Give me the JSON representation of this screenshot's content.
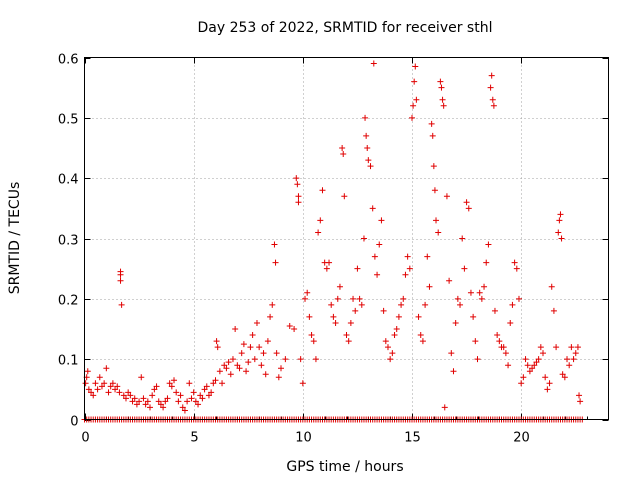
{
  "chart_data": {
    "type": "scatter",
    "title": "Day 253 of 2022, SRMTID for receiver sthl",
    "xlabel": "GPS time / hours",
    "ylabel": "SRMTID / TECUs",
    "xlim": [
      0,
      24
    ],
    "ylim": [
      0,
      0.6
    ],
    "xticks": [
      "0",
      "5",
      "10",
      "15",
      "20"
    ],
    "yticks": [
      "0",
      "0.1",
      "0.2",
      "0.3",
      "0.4",
      "0.5",
      "0.6"
    ],
    "grid": true,
    "marker": "+",
    "color": "#e00000",
    "zero_series_range": [
      0,
      22.8
    ],
    "series": [
      {
        "name": "SRMTID",
        "points": [
          [
            0.05,
            0.06
          ],
          [
            0.1,
            0.07
          ],
          [
            0.15,
            0.08
          ],
          [
            0.2,
            0.05
          ],
          [
            0.3,
            0.045
          ],
          [
            0.4,
            0.04
          ],
          [
            0.5,
            0.06
          ],
          [
            0.6,
            0.05
          ],
          [
            0.7,
            0.07
          ],
          [
            0.8,
            0.055
          ],
          [
            0.9,
            0.06
          ],
          [
            1.0,
            0.085
          ],
          [
            1.1,
            0.045
          ],
          [
            1.2,
            0.055
          ],
          [
            1.3,
            0.06
          ],
          [
            1.4,
            0.05
          ],
          [
            1.5,
            0.055
          ],
          [
            1.6,
            0.045
          ],
          [
            1.65,
            0.24
          ],
          [
            1.65,
            0.245
          ],
          [
            1.65,
            0.23
          ],
          [
            1.7,
            0.19
          ],
          [
            1.8,
            0.04
          ],
          [
            1.9,
            0.035
          ],
          [
            2.0,
            0.045
          ],
          [
            2.1,
            0.04
          ],
          [
            2.2,
            0.03
          ],
          [
            2.3,
            0.035
          ],
          [
            2.4,
            0.025
          ],
          [
            2.5,
            0.03
          ],
          [
            2.6,
            0.07
          ],
          [
            2.7,
            0.035
          ],
          [
            2.8,
            0.025
          ],
          [
            2.9,
            0.03
          ],
          [
            3.0,
            0.02
          ],
          [
            3.1,
            0.04
          ],
          [
            3.2,
            0.05
          ],
          [
            3.3,
            0.055
          ],
          [
            3.4,
            0.03
          ],
          [
            3.5,
            0.025
          ],
          [
            3.6,
            0.02
          ],
          [
            3.7,
            0.03
          ],
          [
            3.8,
            0.035
          ],
          [
            3.9,
            0.06
          ],
          [
            4.0,
            0.055
          ],
          [
            4.1,
            0.065
          ],
          [
            4.2,
            0.045
          ],
          [
            4.3,
            0.03
          ],
          [
            4.4,
            0.04
          ],
          [
            4.5,
            0.02
          ],
          [
            4.6,
            0.015
          ],
          [
            4.7,
            0.03
          ],
          [
            4.8,
            0.06
          ],
          [
            4.9,
            0.035
          ],
          [
            5.0,
            0.045
          ],
          [
            5.1,
            0.03
          ],
          [
            5.2,
            0.025
          ],
          [
            5.3,
            0.04
          ],
          [
            5.4,
            0.035
          ],
          [
            5.5,
            0.05
          ],
          [
            5.6,
            0.055
          ],
          [
            5.7,
            0.04
          ],
          [
            5.8,
            0.045
          ],
          [
            5.9,
            0.06
          ],
          [
            6.0,
            0.065
          ],
          [
            6.05,
            0.13
          ],
          [
            6.1,
            0.12
          ],
          [
            6.2,
            0.08
          ],
          [
            6.3,
            0.06
          ],
          [
            6.4,
            0.09
          ],
          [
            6.5,
            0.085
          ],
          [
            6.6,
            0.095
          ],
          [
            6.7,
            0.075
          ],
          [
            6.8,
            0.1
          ],
          [
            6.9,
            0.15
          ],
          [
            7.0,
            0.09
          ],
          [
            7.1,
            0.085
          ],
          [
            7.2,
            0.11
          ],
          [
            7.3,
            0.125
          ],
          [
            7.4,
            0.08
          ],
          [
            7.5,
            0.095
          ],
          [
            7.6,
            0.12
          ],
          [
            7.7,
            0.14
          ],
          [
            7.8,
            0.1
          ],
          [
            7.9,
            0.16
          ],
          [
            8.0,
            0.12
          ],
          [
            8.1,
            0.09
          ],
          [
            8.2,
            0.11
          ],
          [
            8.3,
            0.075
          ],
          [
            8.4,
            0.13
          ],
          [
            8.5,
            0.17
          ],
          [
            8.6,
            0.19
          ],
          [
            8.7,
            0.29
          ],
          [
            8.75,
            0.26
          ],
          [
            8.8,
            0.11
          ],
          [
            8.9,
            0.07
          ],
          [
            9.0,
            0.085
          ],
          [
            9.2,
            0.1
          ],
          [
            9.4,
            0.155
          ],
          [
            9.6,
            0.15
          ],
          [
            9.7,
            0.4
          ],
          [
            9.75,
            0.39
          ],
          [
            9.8,
            0.37
          ],
          [
            9.8,
            0.36
          ],
          [
            9.9,
            0.1
          ],
          [
            10.0,
            0.06
          ],
          [
            10.1,
            0.2
          ],
          [
            10.2,
            0.21
          ],
          [
            10.3,
            0.17
          ],
          [
            10.4,
            0.14
          ],
          [
            10.5,
            0.13
          ],
          [
            10.6,
            0.1
          ],
          [
            10.7,
            0.31
          ],
          [
            10.8,
            0.33
          ],
          [
            10.9,
            0.38
          ],
          [
            11.0,
            0.26
          ],
          [
            11.1,
            0.25
          ],
          [
            11.2,
            0.26
          ],
          [
            11.3,
            0.19
          ],
          [
            11.4,
            0.17
          ],
          [
            11.5,
            0.16
          ],
          [
            11.6,
            0.2
          ],
          [
            11.7,
            0.22
          ],
          [
            11.8,
            0.45
          ],
          [
            11.85,
            0.44
          ],
          [
            11.9,
            0.37
          ],
          [
            12.0,
            0.14
          ],
          [
            12.1,
            0.13
          ],
          [
            12.2,
            0.16
          ],
          [
            12.3,
            0.2
          ],
          [
            12.4,
            0.18
          ],
          [
            12.5,
            0.25
          ],
          [
            12.6,
            0.2
          ],
          [
            12.7,
            0.19
          ],
          [
            12.8,
            0.3
          ],
          [
            12.85,
            0.5
          ],
          [
            12.9,
            0.47
          ],
          [
            12.95,
            0.45
          ],
          [
            13.0,
            0.43
          ],
          [
            13.1,
            0.42
          ],
          [
            13.2,
            0.35
          ],
          [
            13.25,
            0.59
          ],
          [
            13.3,
            0.27
          ],
          [
            13.4,
            0.24
          ],
          [
            13.5,
            0.29
          ],
          [
            13.6,
            0.33
          ],
          [
            13.7,
            0.18
          ],
          [
            13.8,
            0.13
          ],
          [
            13.9,
            0.12
          ],
          [
            14.0,
            0.1
          ],
          [
            14.1,
            0.11
          ],
          [
            14.2,
            0.14
          ],
          [
            14.3,
            0.15
          ],
          [
            14.4,
            0.17
          ],
          [
            14.5,
            0.19
          ],
          [
            14.6,
            0.2
          ],
          [
            14.7,
            0.24
          ],
          [
            14.8,
            0.27
          ],
          [
            14.9,
            0.25
          ],
          [
            15.0,
            0.5
          ],
          [
            15.05,
            0.52
          ],
          [
            15.1,
            0.56
          ],
          [
            15.15,
            0.585
          ],
          [
            15.2,
            0.53
          ],
          [
            15.3,
            0.17
          ],
          [
            15.4,
            0.14
          ],
          [
            15.5,
            0.13
          ],
          [
            15.6,
            0.19
          ],
          [
            15.7,
            0.27
          ],
          [
            15.8,
            0.22
          ],
          [
            15.9,
            0.49
          ],
          [
            15.95,
            0.47
          ],
          [
            16.0,
            0.42
          ],
          [
            16.05,
            0.38
          ],
          [
            16.1,
            0.33
          ],
          [
            16.2,
            0.31
          ],
          [
            16.3,
            0.56
          ],
          [
            16.35,
            0.55
          ],
          [
            16.4,
            0.53
          ],
          [
            16.45,
            0.52
          ],
          [
            16.5,
            0.02
          ],
          [
            16.6,
            0.37
          ],
          [
            16.7,
            0.23
          ],
          [
            16.8,
            0.11
          ],
          [
            16.9,
            0.08
          ],
          [
            17.0,
            0.16
          ],
          [
            17.1,
            0.2
          ],
          [
            17.2,
            0.19
          ],
          [
            17.3,
            0.3
          ],
          [
            17.4,
            0.25
          ],
          [
            17.5,
            0.36
          ],
          [
            17.6,
            0.35
          ],
          [
            17.7,
            0.21
          ],
          [
            17.8,
            0.17
          ],
          [
            17.9,
            0.13
          ],
          [
            18.0,
            0.1
          ],
          [
            18.1,
            0.21
          ],
          [
            18.2,
            0.2
          ],
          [
            18.3,
            0.22
          ],
          [
            18.4,
            0.26
          ],
          [
            18.5,
            0.29
          ],
          [
            18.6,
            0.55
          ],
          [
            18.65,
            0.57
          ],
          [
            18.7,
            0.53
          ],
          [
            18.75,
            0.52
          ],
          [
            18.8,
            0.18
          ],
          [
            18.9,
            0.14
          ],
          [
            19.0,
            0.13
          ],
          [
            19.1,
            0.12
          ],
          [
            19.2,
            0.12
          ],
          [
            19.3,
            0.11
          ],
          [
            19.4,
            0.09
          ],
          [
            19.5,
            0.16
          ],
          [
            19.6,
            0.19
          ],
          [
            19.7,
            0.26
          ],
          [
            19.8,
            0.25
          ],
          [
            19.9,
            0.2
          ],
          [
            20.0,
            0.06
          ],
          [
            20.1,
            0.07
          ],
          [
            20.2,
            0.1
          ],
          [
            20.3,
            0.09
          ],
          [
            20.4,
            0.08
          ],
          [
            20.5,
            0.085
          ],
          [
            20.6,
            0.09
          ],
          [
            20.7,
            0.095
          ],
          [
            20.8,
            0.1
          ],
          [
            20.9,
            0.12
          ],
          [
            21.0,
            0.11
          ],
          [
            21.1,
            0.07
          ],
          [
            21.2,
            0.05
          ],
          [
            21.3,
            0.06
          ],
          [
            21.4,
            0.22
          ],
          [
            21.5,
            0.18
          ],
          [
            21.6,
            0.12
          ],
          [
            21.7,
            0.31
          ],
          [
            21.75,
            0.33
          ],
          [
            21.8,
            0.34
          ],
          [
            21.85,
            0.3
          ],
          [
            21.9,
            0.075
          ],
          [
            22.0,
            0.07
          ],
          [
            22.1,
            0.1
          ],
          [
            22.2,
            0.09
          ],
          [
            22.3,
            0.12
          ],
          [
            22.4,
            0.1
          ],
          [
            22.5,
            0.11
          ],
          [
            22.6,
            0.12
          ],
          [
            22.65,
            0.04
          ],
          [
            22.7,
            0.03
          ]
        ]
      }
    ]
  }
}
